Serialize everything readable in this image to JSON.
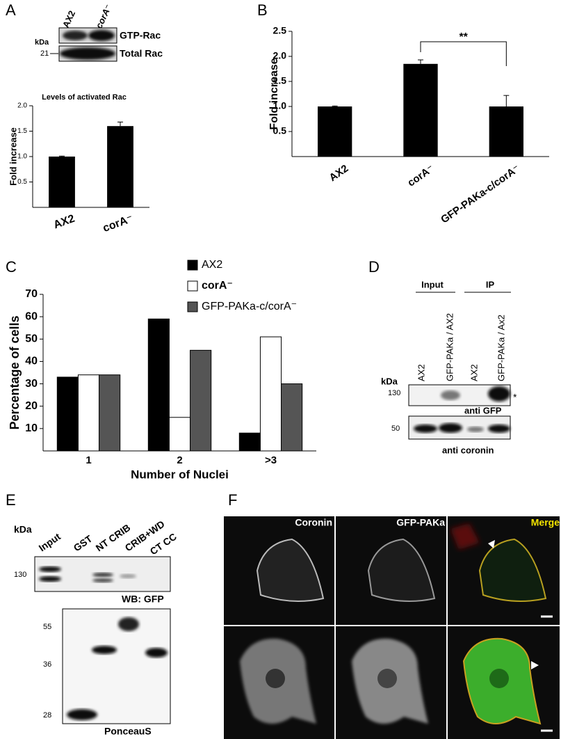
{
  "panel_labels": [
    "A",
    "B",
    "C",
    "D",
    "E",
    "F"
  ],
  "chart_data": [
    {
      "type": "bar",
      "title": "Levels of activated Rac",
      "y_label": "Fold increase",
      "categories": [
        "AX2",
        "corA⁻"
      ],
      "values": [
        1.0,
        1.6
      ],
      "errors": [
        0.01,
        0.08
      ],
      "color": "#000000",
      "ylim": [
        0,
        2
      ],
      "yticks": [
        0.5,
        {
          "value": 1,
          "label": "1.0"
        },
        1.5,
        {
          "value": 2,
          "label": "2.0"
        }
      ]
    },
    {
      "type": "bar",
      "y_label": "Fold increase",
      "categories": [
        "AX2",
        "corA⁻",
        "GFP-PAKa-c/corA⁻"
      ],
      "values": [
        1.0,
        1.85,
        1.0
      ],
      "errors": [
        0.01,
        0.08,
        0.22
      ],
      "color": "#000000",
      "ylim": [
        0,
        2.5
      ],
      "yticks": [
        0.5,
        {
          "value": 1,
          "label": "1.0"
        },
        1.5,
        {
          "value": 2,
          "label": "2.0"
        },
        2.5
      ],
      "annotation": "**"
    },
    {
      "type": "bar",
      "y_label": "Percentage of cells",
      "x_label": "Number of Nuclei",
      "categories": [
        "1",
        "2",
        ">3"
      ],
      "series": [
        {
          "name": "AX2",
          "color": "#000000",
          "values": [
            33,
            59,
            8
          ]
        },
        {
          "name": "corA⁻",
          "color": "#ffffff",
          "values": [
            34,
            15,
            51
          ]
        },
        {
          "name": "GFP-PAKa-c/corA⁻",
          "color": "#555555",
          "values": [
            34,
            45,
            30
          ]
        }
      ],
      "ylim": [
        0,
        70
      ],
      "yticks": [
        10,
        20,
        30,
        40,
        50,
        60,
        70
      ],
      "legend": "top-right"
    }
  ],
  "blot_a": {
    "lanes": [
      "AX2",
      "corA⁻"
    ],
    "kda": "kDa",
    "marker": "21",
    "rows": [
      "GTP-Rac",
      "Total Rac"
    ]
  },
  "blot_d": {
    "groups": [
      "Input",
      "IP"
    ],
    "lanes": [
      "AX2",
      "GFP-PAKa / AX2",
      "AX2",
      "GFP-PAKa / Ax2"
    ],
    "kda": "kDa",
    "markers": [
      "130",
      "50"
    ],
    "star": "*",
    "antibodies": [
      "anti GFP",
      "anti coronin"
    ]
  },
  "blot_e": {
    "lanes": [
      "Input",
      "GST",
      "NT CRIB",
      "CRIB+WD",
      "CT CC"
    ],
    "kda": "kDa",
    "markers": [
      "130",
      "55",
      "36",
      "28"
    ],
    "stains": [
      "WB: GFP",
      "PonceauS"
    ]
  },
  "microscopy_f": {
    "channels": [
      "Coronin",
      "GFP-PAKa",
      "Merge"
    ]
  }
}
